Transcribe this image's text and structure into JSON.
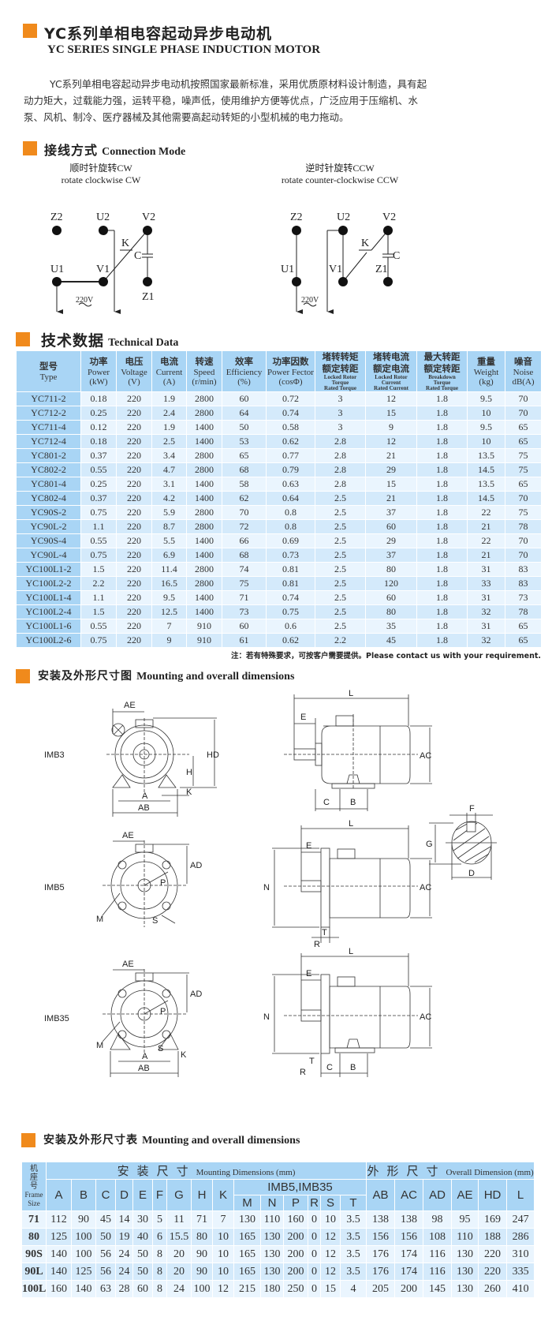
{
  "header": {
    "title_cn": "YC系列单相电容起动异步电动机",
    "title_en": "YC SERIES SINGLE PHASE INDUCTION MOTOR",
    "intro": "YC系列单相电容起动异步电动机按照国家最新标准，采用优质原材料设计制造，具有起动力矩大，过载能力强，运转平稳，噪声低，使用维护方便等优点，广泛应用于压缩机、水泵、风机、制冷、医疗器械及其他需要高起动转矩的小型机械的电力拖动。"
  },
  "accent_color": "#f08a1c",
  "table_color": "#a9d5f5",
  "connection": {
    "heading_cn": "接线方式",
    "heading_en": "Connection Mode",
    "cw": {
      "title_cn": "顺时针旋转CW",
      "title_en": "rotate clockwise CW"
    },
    "ccw": {
      "title_cn": "逆时针旋转CCW",
      "title_en": "rotate counter-clockwise CCW"
    },
    "labels": {
      "z2": "Z2",
      "u2": "U2",
      "v2": "V2",
      "u1": "U1",
      "v1": "V1",
      "z1": "Z1",
      "k": "K",
      "c": "C",
      "voltage": "220V",
      "ac": "~"
    }
  },
  "technical": {
    "heading_cn": "技术数据",
    "heading_en": "Technical Data",
    "columns": [
      {
        "cn": "型号",
        "en": "Type"
      },
      {
        "cn": "功率",
        "en": "Power",
        "unit": "(kW)"
      },
      {
        "cn": "电压",
        "en": "Voltage",
        "unit": "(V)"
      },
      {
        "cn": "电流",
        "en": "Current",
        "unit": "(A)"
      },
      {
        "cn": "转速",
        "en": "Speed",
        "unit": "(r/min)"
      },
      {
        "cn": "效率",
        "en": "Efficiency",
        "unit": "(%)"
      },
      {
        "cn": "功率因数",
        "en": "Power Fector",
        "unit": "(cosΦ)"
      },
      {
        "cn": "堵转转矩",
        "cn2": "额定转距",
        "en": "Locked Rotor",
        "en2": "Torque",
        "en3": "Rated Torque"
      },
      {
        "cn": "堵转电流",
        "cn2": "额定电流",
        "en": "Locked Rotor",
        "en2": "Current",
        "en3": "Rated Current"
      },
      {
        "cn": "最大转距",
        "cn2": "额定转距",
        "en": "Breakdown",
        "en2": "Torque",
        "en3": "Rated Torque"
      },
      {
        "cn": "重量",
        "en": "Weight",
        "unit": "(kg)"
      },
      {
        "cn": "噪音",
        "en": "Noise",
        "unit": "dB(A)"
      }
    ],
    "rows": [
      [
        "YC711-2",
        "0.18",
        "220",
        "1.9",
        "2800",
        "60",
        "0.72",
        "3",
        "12",
        "1.8",
        "9.5",
        "70"
      ],
      [
        "YC712-2",
        "0.25",
        "220",
        "2.4",
        "2800",
        "64",
        "0.74",
        "3",
        "15",
        "1.8",
        "10",
        "70"
      ],
      [
        "YC711-4",
        "0.12",
        "220",
        "1.9",
        "1400",
        "50",
        "0.58",
        "3",
        "9",
        "1.8",
        "9.5",
        "65"
      ],
      [
        "YC712-4",
        "0.18",
        "220",
        "2.5",
        "1400",
        "53",
        "0.62",
        "2.8",
        "12",
        "1.8",
        "10",
        "65"
      ],
      [
        "YC801-2",
        "0.37",
        "220",
        "3.4",
        "2800",
        "65",
        "0.77",
        "2.8",
        "21",
        "1.8",
        "13.5",
        "75"
      ],
      [
        "YC802-2",
        "0.55",
        "220",
        "4.7",
        "2800",
        "68",
        "0.79",
        "2.8",
        "29",
        "1.8",
        "14.5",
        "75"
      ],
      [
        "YC801-4",
        "0.25",
        "220",
        "3.1",
        "1400",
        "58",
        "0.63",
        "2.8",
        "15",
        "1.8",
        "13.5",
        "65"
      ],
      [
        "YC802-4",
        "0.37",
        "220",
        "4.2",
        "1400",
        "62",
        "0.64",
        "2.5",
        "21",
        "1.8",
        "14.5",
        "70"
      ],
      [
        "YC90S-2",
        "0.75",
        "220",
        "5.9",
        "2800",
        "70",
        "0.8",
        "2.5",
        "37",
        "1.8",
        "22",
        "75"
      ],
      [
        "YC90L-2",
        "1.1",
        "220",
        "8.7",
        "2800",
        "72",
        "0.8",
        "2.5",
        "60",
        "1.8",
        "21",
        "78"
      ],
      [
        "YC90S-4",
        "0.55",
        "220",
        "5.5",
        "1400",
        "66",
        "0.69",
        "2.5",
        "29",
        "1.8",
        "22",
        "70"
      ],
      [
        "YC90L-4",
        "0.75",
        "220",
        "6.9",
        "1400",
        "68",
        "0.73",
        "2.5",
        "37",
        "1.8",
        "21",
        "70"
      ],
      [
        "YC100L1-2",
        "1.5",
        "220",
        "11.4",
        "2800",
        "74",
        "0.81",
        "2.5",
        "80",
        "1.8",
        "31",
        "83"
      ],
      [
        "YC100L2-2",
        "2.2",
        "220",
        "16.5",
        "2800",
        "75",
        "0.81",
        "2.5",
        "120",
        "1.8",
        "33",
        "83"
      ],
      [
        "YC100L1-4",
        "1.1",
        "220",
        "9.5",
        "1400",
        "71",
        "0.74",
        "2.5",
        "60",
        "1.8",
        "31",
        "73"
      ],
      [
        "YC100L2-4",
        "1.5",
        "220",
        "12.5",
        "1400",
        "73",
        "0.75",
        "2.5",
        "80",
        "1.8",
        "32",
        "78"
      ],
      [
        "YC100L1-6",
        "0.55",
        "220",
        "7",
        "910",
        "60",
        "0.6",
        "2.5",
        "35",
        "1.8",
        "31",
        "65"
      ],
      [
        "YC100L2-6",
        "0.75",
        "220",
        "9",
        "910",
        "61",
        "0.62",
        "2.2",
        "45",
        "1.8",
        "32",
        "65"
      ]
    ],
    "note": "注：若有特殊要求，可按客户需要提供。Please contact us with your requirement."
  },
  "drawings": {
    "heading_cn": "安装及外形尺寸图",
    "heading_en": "Mounting and overall dimensions",
    "views": [
      "IMB3",
      "IMB5",
      "IMB35"
    ],
    "labels": {
      "AE": "AE",
      "HD": "HD",
      "H": "H",
      "K": "K",
      "A": "A",
      "AB": "AB",
      "L": "L",
      "E": "E",
      "AC": "AC",
      "C": "C",
      "B": "B",
      "F": "F",
      "G": "G",
      "D": "D",
      "AD": "AD",
      "P": "P",
      "M": "M",
      "S": "S",
      "N": "N",
      "T": "T",
      "R": "R"
    }
  },
  "dimensions": {
    "heading_cn": "安装及外形尺寸表",
    "heading_en": "Mounting and overall dimensions",
    "frame_cn": "机座号",
    "frame_en1": "Frame",
    "frame_en2": "Size",
    "mounting_cn": "安装尺寸",
    "mounting_en": "Mounting Dimensions (mm)",
    "overall_cn": "外形尺寸",
    "overall_en": "Overall Dimension (mm)",
    "flange_group": "IMB5,IMB35",
    "columns": [
      "A",
      "B",
      "C",
      "D",
      "E",
      "F",
      "G",
      "H",
      "K",
      "M",
      "N",
      "P",
      "R",
      "S",
      "T",
      "AB",
      "AC",
      "AD",
      "AE",
      "HD",
      "L"
    ],
    "rows": [
      [
        "71",
        "112",
        "90",
        "45",
        "14",
        "30",
        "5",
        "11",
        "71",
        "7",
        "130",
        "110",
        "160",
        "0",
        "10",
        "3.5",
        "138",
        "138",
        "98",
        "95",
        "169",
        "247"
      ],
      [
        "80",
        "125",
        "100",
        "50",
        "19",
        "40",
        "6",
        "15.5",
        "80",
        "10",
        "165",
        "130",
        "200",
        "0",
        "12",
        "3.5",
        "156",
        "156",
        "108",
        "110",
        "188",
        "286"
      ],
      [
        "90S",
        "140",
        "100",
        "56",
        "24",
        "50",
        "8",
        "20",
        "90",
        "10",
        "165",
        "130",
        "200",
        "0",
        "12",
        "3.5",
        "176",
        "174",
        "116",
        "130",
        "220",
        "310"
      ],
      [
        "90L",
        "140",
        "125",
        "56",
        "24",
        "50",
        "8",
        "20",
        "90",
        "10",
        "165",
        "130",
        "200",
        "0",
        "12",
        "3.5",
        "176",
        "174",
        "116",
        "130",
        "220",
        "335"
      ],
      [
        "100L",
        "160",
        "140",
        "63",
        "28",
        "60",
        "8",
        "24",
        "100",
        "12",
        "215",
        "180",
        "250",
        "0",
        "15",
        "4",
        "205",
        "200",
        "145",
        "130",
        "260",
        "410"
      ]
    ]
  }
}
